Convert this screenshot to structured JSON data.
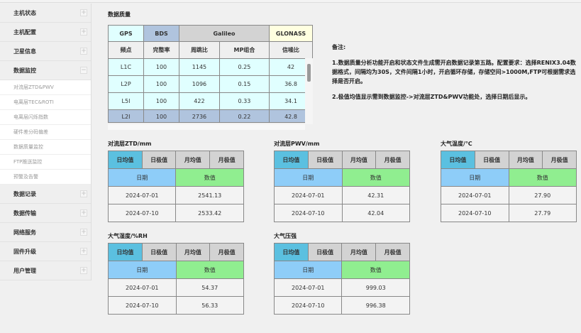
{
  "sidebar": {
    "items": [
      {
        "label": "主机状态",
        "toggle": "+"
      },
      {
        "label": "主机配置",
        "toggle": "+"
      },
      {
        "label": "卫星信息",
        "toggle": "+"
      },
      {
        "label": "数据监控",
        "toggle": "−"
      }
    ],
    "subitems": [
      "对流层ZTD&PWV",
      "电离层TEC&ROTI",
      "电离层闪烁指数",
      "硬件差分码偏差",
      "数据质量监控",
      "FTP推送监控",
      "预警及告警"
    ],
    "items_after": [
      {
        "label": "数据记录",
        "toggle": "+"
      },
      {
        "label": "数据传输",
        "toggle": "+"
      },
      {
        "label": "网络服务",
        "toggle": "+"
      },
      {
        "label": "固件升级",
        "toggle": "+"
      },
      {
        "label": "用户管理",
        "toggle": "+"
      }
    ]
  },
  "quality": {
    "title": "数据质量",
    "systems": [
      "GPS",
      "BDS",
      "Galileo",
      "GLONASS"
    ],
    "columns": [
      "频点",
      "完整率",
      "周跳比",
      "MP组合",
      "信噪比"
    ],
    "rows": [
      [
        "L1C",
        "100",
        "1145",
        "0.25",
        "42"
      ],
      [
        "L2P",
        "100",
        "1096",
        "0.15",
        "36.8"
      ],
      [
        "L5I",
        "100",
        "422",
        "0.33",
        "34.1"
      ],
      [
        "L2I",
        "100",
        "2736",
        "0.22",
        "42.8"
      ]
    ],
    "colors": {
      "GPS": "#e0ffff",
      "BDS": "#b0c4de",
      "Galileo": "#d3d3d3",
      "GLONASS": "#ffffe0"
    }
  },
  "notes": {
    "heading": "备注:",
    "p1": "1.数据质量分析功能开启和状态文件生成需开启数据记录第五路。配置要求：选择RENIX3.04数据格式，间隔均为30S，文件间隔1小时，开启循环存储，存储空间>1000M,FTP可根据需求选择是否开启。",
    "p2": "2.极值均值显示需到数据监控->对流层ZTD&PWV功能处，选择日期后显示。"
  },
  "widget_tabs": [
    "日均值",
    "日极值",
    "月均值",
    "月极值"
  ],
  "widget_headers": [
    "日期",
    "数值"
  ],
  "widgets": [
    {
      "title": "对流层ZTD/mm",
      "rows": [
        [
          "2024-07-01",
          "2541.13"
        ],
        [
          "2024-07-10",
          "2533.42"
        ]
      ]
    },
    {
      "title": "对流层PWV/mm",
      "rows": [
        [
          "2024-07-01",
          "42.31"
        ],
        [
          "2024-07-10",
          "42.04"
        ]
      ]
    },
    {
      "title": "大气温度/℃",
      "rows": [
        [
          "2024-07-01",
          "27.90"
        ],
        [
          "2024-07-10",
          "27.79"
        ]
      ]
    },
    {
      "title": "大气湿度/%RH",
      "rows": [
        [
          "2024-07-01",
          "54.37"
        ],
        [
          "2024-07-10",
          "56.33"
        ]
      ]
    },
    {
      "title": "大气压强",
      "rows": [
        [
          "2024-07-01",
          "999.03"
        ],
        [
          "2024-07-10",
          "996.38"
        ]
      ]
    }
  ]
}
